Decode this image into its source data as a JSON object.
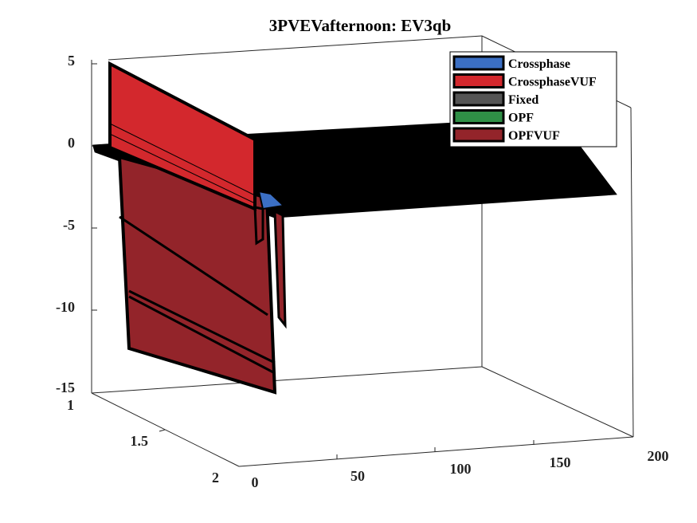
{
  "chart_data": {
    "type": "area",
    "title": "3PVEVafternoon: EV3qb",
    "xlabel": "",
    "ylabel": "",
    "zlabel": "",
    "x_ticks": [
      "0",
      "50",
      "100",
      "150",
      "200"
    ],
    "y_ticks": [
      "1",
      "1.5",
      "2"
    ],
    "z_ticks": [
      "5",
      "0",
      "-5",
      "-10",
      "-15"
    ],
    "xlim": [
      0,
      200
    ],
    "ylim": [
      1,
      2
    ],
    "zlim": [
      -15,
      5
    ],
    "grid": false,
    "legend_position": "top-right",
    "series": [
      {
        "name": "Crossphase",
        "color": "#3b6fc4",
        "values": [
          0,
          0,
          0,
          0,
          0,
          0,
          0,
          0,
          0,
          0,
          0,
          0,
          0,
          0,
          0,
          0,
          0,
          0,
          0,
          0,
          0,
          0,
          0,
          0,
          -1,
          0,
          0,
          0,
          0,
          0,
          0,
          0,
          0,
          0,
          0,
          0,
          0,
          0,
          0,
          0,
          0
        ]
      },
      {
        "name": "CrossphaseVUF",
        "color": "#d3282d",
        "values": [
          5,
          4.5,
          4,
          3.5,
          3,
          2.5,
          2,
          1.5,
          1,
          0.5,
          0,
          -0.5,
          -1,
          -1.5,
          -2,
          -2.5,
          -3,
          -3.5,
          -4,
          -4.5,
          -5,
          -5.5,
          -6,
          -6,
          -6,
          0,
          0,
          0,
          0,
          0,
          0,
          0,
          0,
          0,
          0,
          0,
          0,
          0,
          0,
          0,
          0
        ]
      },
      {
        "name": "Fixed",
        "color": "#555555",
        "values": [
          0,
          0,
          0,
          0,
          0,
          0,
          0,
          0,
          0,
          0,
          0,
          0,
          0,
          0,
          0,
          0,
          0,
          0,
          0,
          0,
          0,
          0,
          0,
          0,
          0,
          0,
          0,
          0,
          0,
          0,
          0,
          0,
          0,
          0,
          0,
          0,
          0,
          0,
          0,
          0,
          0
        ]
      },
      {
        "name": "OPF",
        "color": "#2f8f46",
        "values": [
          0,
          0,
          0,
          0,
          0,
          0,
          0,
          0,
          0,
          0,
          0,
          0,
          0,
          0,
          0,
          0,
          0,
          0,
          0,
          0,
          0,
          0,
          0,
          0,
          0,
          0,
          0,
          0,
          0,
          0,
          0,
          0,
          0,
          0,
          0,
          0,
          0,
          0,
          0,
          0,
          0
        ]
      },
      {
        "name": "OPFVUF",
        "color": "#93242a",
        "values": [
          -4,
          -4.5,
          -5,
          -5.5,
          -6,
          -6.5,
          -7,
          -7.5,
          -8,
          -8.5,
          -9,
          -9.5,
          -10,
          -10.5,
          -11,
          -11.5,
          -12,
          -12.5,
          -13,
          -13.5,
          -14,
          -14.5,
          -15,
          -10,
          -3,
          0,
          0,
          0,
          0,
          0,
          0,
          0,
          0,
          0,
          0,
          0,
          0,
          0,
          0,
          0,
          0
        ]
      }
    ]
  }
}
